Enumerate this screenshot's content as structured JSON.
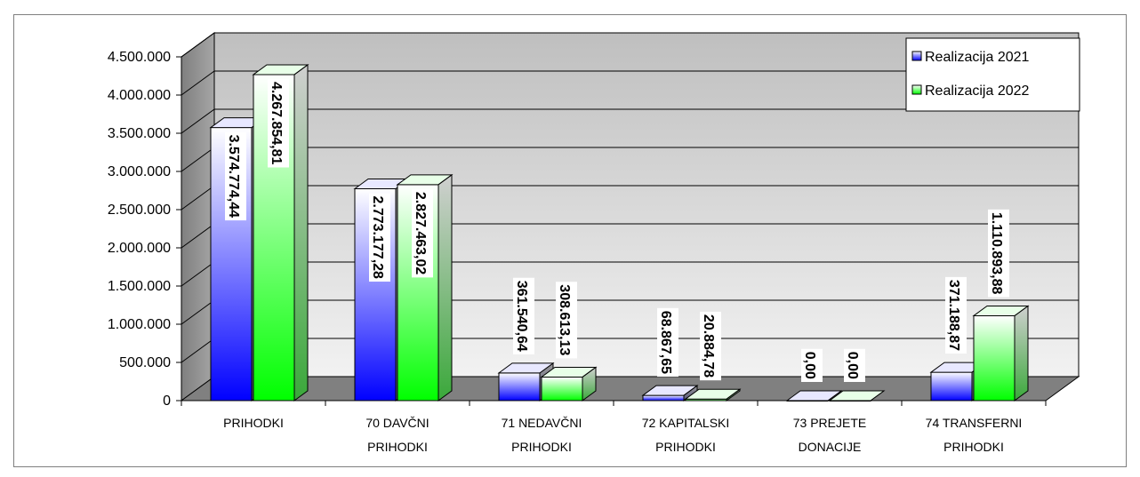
{
  "chart_data": {
    "type": "bar",
    "title": "",
    "xlabel": "",
    "ylabel": "",
    "categories": [
      [
        "PRIHODKI"
      ],
      [
        "70 DAVČNI",
        "PRIHODKI"
      ],
      [
        "71 NEDAVČNI",
        "PRIHODKI"
      ],
      [
        "72 KAPITALSKI",
        "PRIHODKI"
      ],
      [
        "73 PREJETE",
        "DONACIJE"
      ],
      [
        "74 TRANSFERNI",
        "PRIHODKI"
      ]
    ],
    "series": [
      {
        "name": "Realizacija 2021",
        "values": [
          3574774.44,
          2773177.28,
          361540.64,
          68867.65,
          0,
          371188.87
        ],
        "labels": [
          "3.574.774,44",
          "2.773.177,28",
          "361.540,64",
          "68.867,65",
          "0,00",
          "371.188,87"
        ],
        "color": "#0000ff"
      },
      {
        "name": "Realizacija 2022",
        "values": [
          4267854.81,
          2827463.02,
          308613.13,
          20884.78,
          0,
          1110893.88
        ],
        "labels": [
          "4.267.854,81",
          "2.827.463,02",
          "308.613,13",
          "20.884,78",
          "0,00",
          "1.110.893,88"
        ],
        "color": "#00ff00"
      }
    ],
    "ylim": [
      0,
      4500000
    ],
    "yticks": [
      0,
      500000,
      1000000,
      1500000,
      2000000,
      2500000,
      3000000,
      3500000,
      4000000,
      4500000
    ],
    "ytick_labels": [
      "0",
      "500.000",
      "1.000.000",
      "1.500.000",
      "2.000.000",
      "2.500.000",
      "3.000.000",
      "3.500.000",
      "4.000.000",
      "4.500.000"
    ],
    "grid": true,
    "legend_position": "top-right",
    "three_d": true,
    "wall_color": "#c0c0c0",
    "floor_color": "#808080"
  }
}
